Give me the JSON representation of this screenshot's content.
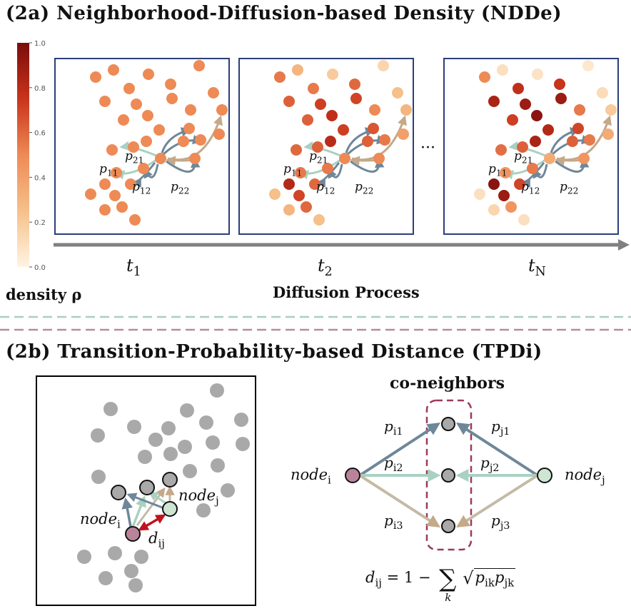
{
  "section_a": {
    "title": "(2a) Neighborhood-Diffusion-based Density (NDDe)",
    "colorbar": {
      "label": "density ρ",
      "ticks": [
        "1.0",
        "0.8",
        "0.6",
        "0.4",
        "0.2",
        "0.0"
      ],
      "gradient_top": "#7a0c0c",
      "gradient_mid": "#ee8a55",
      "gradient_bottom": "#fff1d9"
    },
    "axis_label": "Diffusion Process",
    "time_labels": [
      {
        "base": "t",
        "sub": "1"
      },
      {
        "base": "t",
        "sub": "2"
      },
      {
        "base": "t",
        "sub": "N"
      }
    ],
    "ellipsis": "···",
    "prob_labels": [
      {
        "base": "p",
        "sub": "11"
      },
      {
        "base": "p",
        "sub": "21"
      },
      {
        "base": "p",
        "sub": "12"
      },
      {
        "base": "p",
        "sub": "22"
      }
    ]
  },
  "section_b": {
    "title": "(2b) Transition-Probability-based Distance (TPDi)",
    "co_neighbors_label": "co-neighbors",
    "node_i": {
      "base": "node",
      "sub": "i"
    },
    "node_j": {
      "base": "node",
      "sub": "j"
    },
    "distance": {
      "base": "d",
      "sub": "ij"
    },
    "left_probs": [
      {
        "base": "p",
        "sub": "i1"
      },
      {
        "base": "p",
        "sub": "i2"
      },
      {
        "base": "p",
        "sub": "i3"
      }
    ],
    "right_probs": [
      {
        "base": "p",
        "sub": "j1"
      },
      {
        "base": "p",
        "sub": "j2"
      },
      {
        "base": "p",
        "sub": "j3"
      }
    ],
    "formula": {
      "lhs": "d",
      "lhs_sub": "ij",
      "eq": " = 1 − ",
      "sum": "∑",
      "sum_sub": "k",
      "sqrt_body": "p",
      "sqrt_sub1": "ik",
      "sqrt_mid": "p",
      "sqrt_sub2": "jk"
    },
    "colors": {
      "node_i": "#b9849a",
      "node_j": "#cfe5d3",
      "co_neighbor": "#a9a9a9",
      "arrow_1": "#6e8799",
      "arrow_2": "#a9d1c1",
      "arrow_3": "#c4baa5",
      "distance_arrow": "#c1121f",
      "dash_box": "#9b3b5a"
    }
  },
  "separator_colors": [
    "#a7cfbf",
    "#b88aa2"
  ]
}
